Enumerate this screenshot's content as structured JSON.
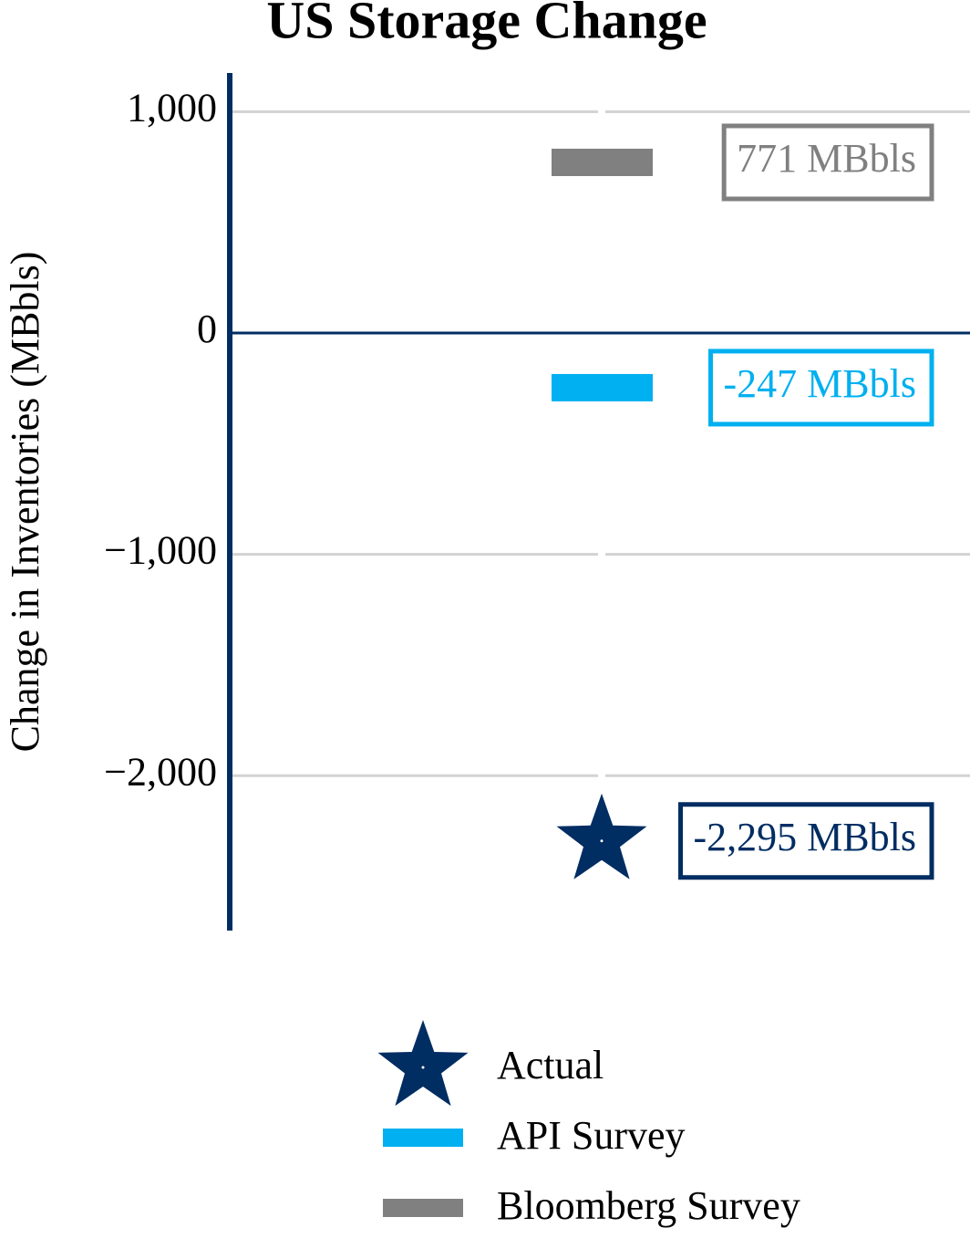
{
  "chart_data": {
    "type": "scatter",
    "title": "US Storage Change",
    "y_label": "Change in Inventories (MBbls)",
    "ylim": [
      -2700,
      1175
    ],
    "yticks": [
      {
        "value": 1000,
        "label": "1,000"
      },
      0,
      {
        "value": -1000,
        "label": "−1,000"
      },
      {
        "value": -2000,
        "label": "−2,000"
      }
    ],
    "grid": true,
    "axis_color": "#002d62",
    "series": [
      {
        "name": "Actual",
        "color": "#002d62",
        "marker": "star",
        "values": [
          -2295
        ],
        "value_labels": [
          "-2,295 MBbls"
        ]
      },
      {
        "name": "API Survey",
        "color": "#00b0f0",
        "marker": "dash",
        "values": [
          -247
        ],
        "value_labels": [
          "-247 MBbls"
        ]
      },
      {
        "name": "Bloomberg Survey",
        "color": "#808080",
        "marker": "dash",
        "values": [
          771
        ],
        "value_labels": [
          "771 MBbls"
        ]
      }
    ],
    "legend": "bottom"
  }
}
